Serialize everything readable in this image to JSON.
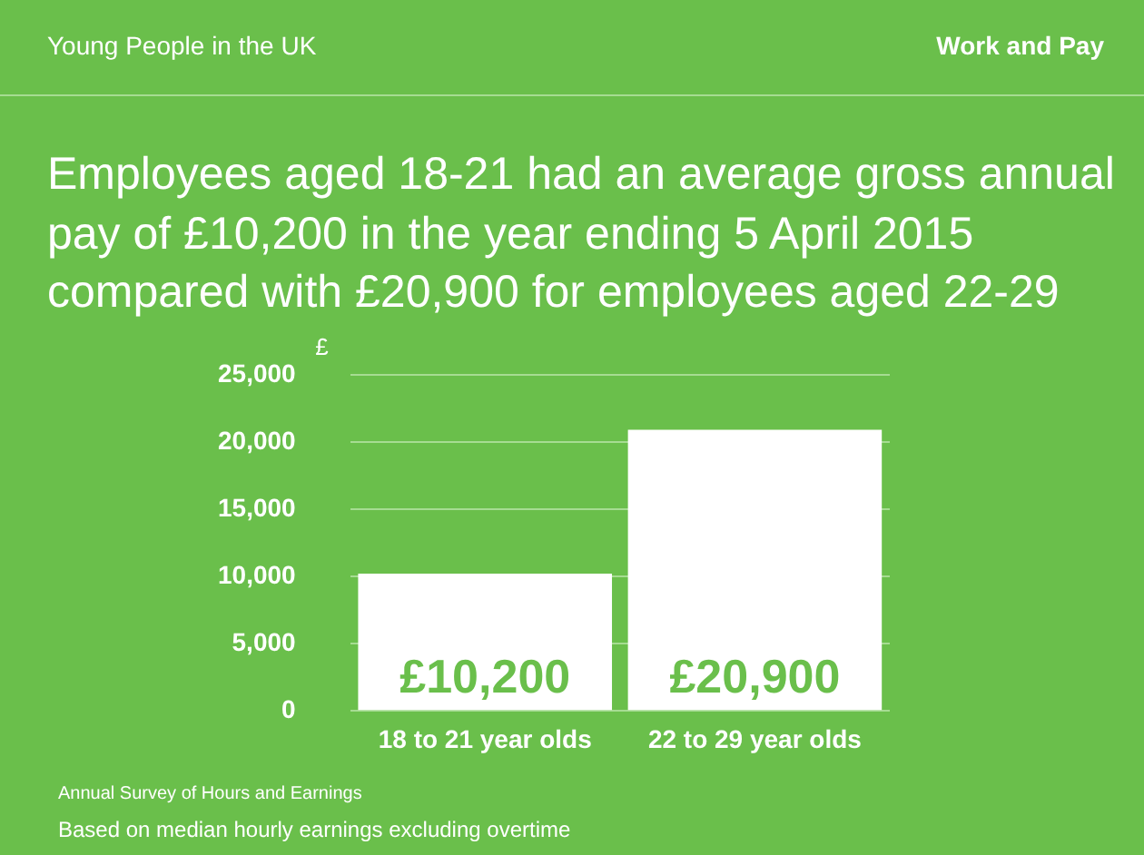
{
  "chart_data": {
    "type": "bar",
    "subtitle": "Young People in the UK",
    "title": "Employees aged 18-21 had an average gross annual pay of £10,200 in the year ending 5 April 2015 compared with £20,900 for employees aged 22-29",
    "ylabel": "£",
    "categories": [
      "18 to 21 year olds",
      "22 to 29 year olds"
    ],
    "values": [
      10200,
      20900
    ],
    "color": "#ffffff",
    "value_labels": [
      "£10,200",
      "£20,900"
    ],
    "ylim": [
      0,
      25000
    ],
    "yticks": [
      {
        "value": 0,
        "label": "0"
      },
      {
        "value": 5000,
        "label": "5,000"
      },
      {
        "value": 10000,
        "label": "10,000"
      },
      {
        "value": 15000,
        "label": "15,000"
      },
      {
        "value": 20000,
        "label": "20,000"
      },
      {
        "value": 25000,
        "label": "25,000"
      }
    ],
    "grid": "y",
    "annotations": [
      "Work and Pay",
      "Annual Survey of Hours and Earnings",
      "Based on median hourly earnings excluding overtime"
    ]
  }
}
